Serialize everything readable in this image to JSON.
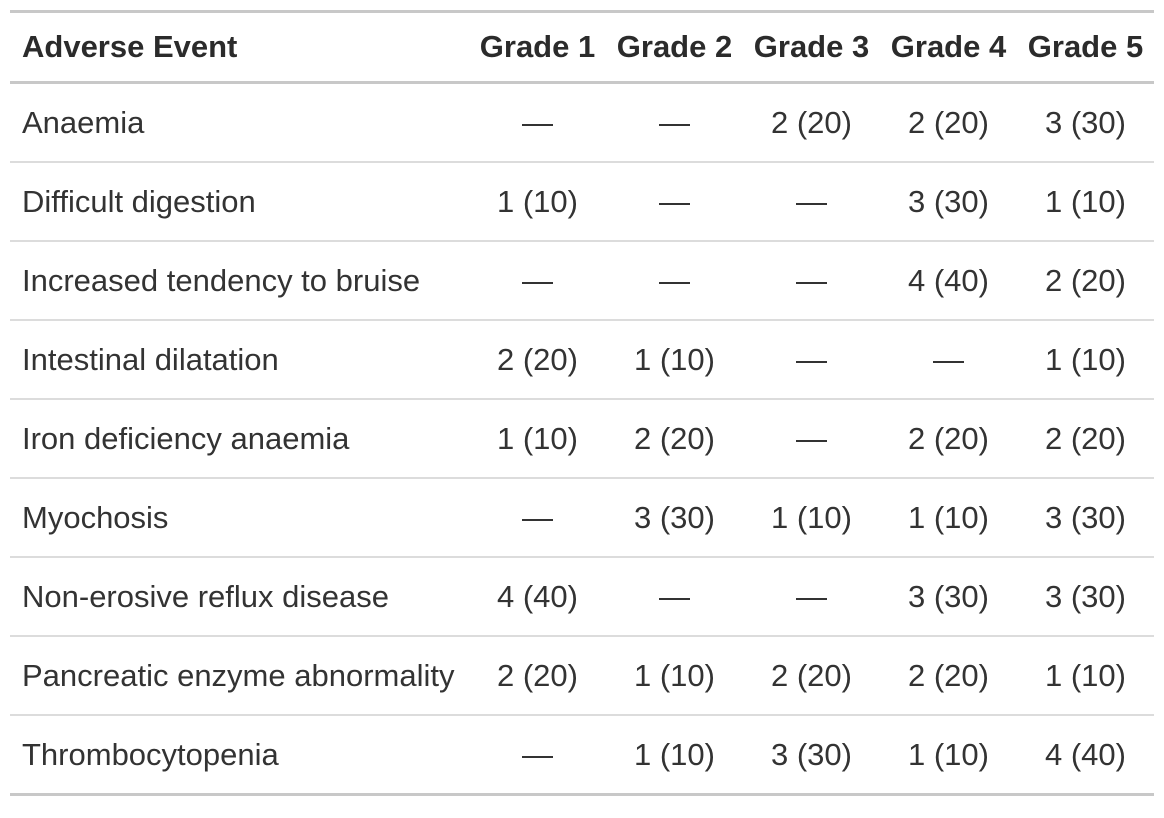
{
  "colors": {
    "background": "#ffffff",
    "body_text": "#333333",
    "header_text": "#2b2b2b",
    "outer_border": "#c8c8c8",
    "row_divider": "#dcdcdc"
  },
  "chart_data": {
    "type": "table",
    "columns": [
      "Adverse Event",
      "Grade 1",
      "Grade 2",
      "Grade 3",
      "Grade 4",
      "Grade 5"
    ],
    "rows": [
      [
        "Anaemia",
        "—",
        "—",
        "2 (20)",
        "2 (20)",
        "3 (30)"
      ],
      [
        "Difficult digestion",
        "1 (10)",
        "—",
        "—",
        "3 (30)",
        "1 (10)"
      ],
      [
        "Increased tendency to bruise",
        "—",
        "—",
        "—",
        "4 (40)",
        "2 (20)"
      ],
      [
        "Intestinal dilatation",
        "2 (20)",
        "1 (10)",
        "—",
        "—",
        "1 (10)"
      ],
      [
        "Iron deficiency anaemia",
        "1 (10)",
        "2 (20)",
        "—",
        "2 (20)",
        "2 (20)"
      ],
      [
        "Myochosis",
        "—",
        "3 (30)",
        "1 (10)",
        "1 (10)",
        "3 (30)"
      ],
      [
        "Non-erosive reflux disease",
        "4 (40)",
        "—",
        "—",
        "3 (30)",
        "3 (30)"
      ],
      [
        "Pancreatic enzyme abnormality",
        "2 (20)",
        "1 (10)",
        "2 (20)",
        "2 (20)",
        "1 (10)"
      ],
      [
        "Thrombocytopenia",
        "—",
        "1 (10)",
        "3 (30)",
        "1 (10)",
        "4 (40)"
      ]
    ]
  }
}
